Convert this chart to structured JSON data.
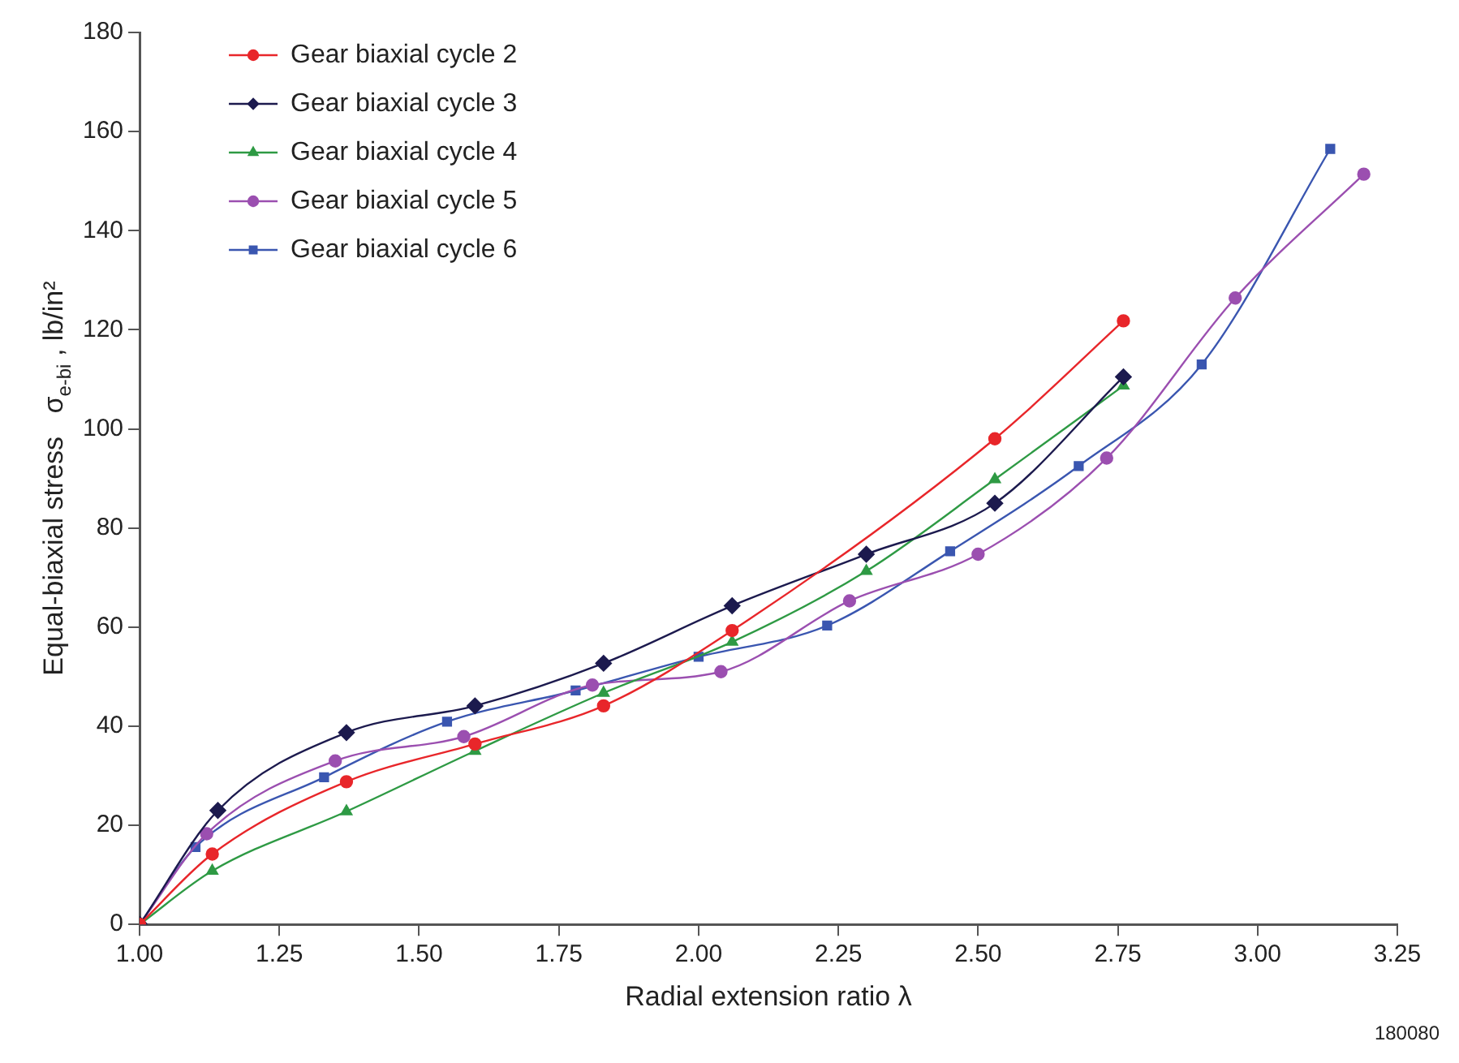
{
  "chart_data": {
    "type": "line",
    "xlabel": "Radial extension ratio λ",
    "ylabel": "Equal-biaxial stress   σ$_{e-bi}$ , lb/in²",
    "annotations": [
      "180080"
    ],
    "legend": "top left",
    "grid": false,
    "xlim": [
      1,
      3.25
    ],
    "xticks": [
      {
        "value": 1,
        "label": "1.00"
      },
      {
        "value": 1.25,
        "label": "1.25"
      },
      {
        "value": 1.5,
        "label": "1.50"
      },
      {
        "value": 1.75,
        "label": "1.75"
      },
      {
        "value": 2,
        "label": "2.00"
      },
      {
        "value": 2.25,
        "label": "2.25"
      },
      {
        "value": 2.5,
        "label": "2.50"
      },
      {
        "value": 2.75,
        "label": "2.75"
      },
      {
        "value": 3,
        "label": "3.00"
      },
      {
        "value": 3.25,
        "label": "3.25"
      }
    ],
    "ylim": [
      0,
      180
    ],
    "yticks": [
      0,
      20,
      40,
      60,
      80,
      100,
      120,
      140,
      160,
      180
    ],
    "series": [
      {
        "name": "Gear biaxial cycle 2",
        "color": "#e8262a",
        "marker": "circle",
        "x": [
          1,
          1.13,
          1.37,
          1.6,
          1.83,
          2.06,
          2.53,
          2.76
        ],
        "values": [
          0,
          14.2,
          28.8,
          36.4,
          44.1,
          59.3,
          98,
          121.8
        ]
      },
      {
        "name": "Gear biaxial cycle 3",
        "color": "#1c1a4e",
        "marker": "diamond",
        "x": [
          1,
          1.14,
          1.37,
          1.6,
          1.83,
          2.06,
          2.3,
          2.53,
          2.76
        ],
        "values": [
          0,
          23,
          38.7,
          44.1,
          52.7,
          64.3,
          74.7,
          85,
          110.5
        ]
      },
      {
        "name": "Gear biaxial cycle 4",
        "color": "#2e9a44",
        "marker": "triangle",
        "x": [
          1,
          1.13,
          1.37,
          1.6,
          1.83,
          2.06,
          2.3,
          2.53,
          2.76
        ],
        "values": [
          0,
          10.8,
          22.8,
          35,
          46.7,
          57,
          71.3,
          89.8,
          108.7
        ]
      },
      {
        "name": "Gear biaxial cycle 5",
        "color": "#9b4fb0",
        "marker": "circle",
        "x": [
          1,
          1.12,
          1.35,
          1.58,
          1.81,
          2.04,
          2.27,
          2.5,
          2.73,
          2.96,
          3.19
        ],
        "values": [
          0,
          18.3,
          33,
          37.9,
          48.3,
          51,
          65.3,
          74.7,
          94.1,
          126.4,
          151.4
        ]
      },
      {
        "name": "Gear biaxial cycle 6",
        "color": "#3a56b0",
        "marker": "square",
        "x": [
          1,
          1.1,
          1.33,
          1.55,
          1.78,
          2,
          2.23,
          2.45,
          2.68,
          2.9,
          3.13
        ],
        "values": [
          0,
          15.6,
          29.7,
          40.9,
          47.2,
          54,
          60.3,
          75.3,
          92.5,
          113,
          156.5
        ]
      }
    ]
  }
}
